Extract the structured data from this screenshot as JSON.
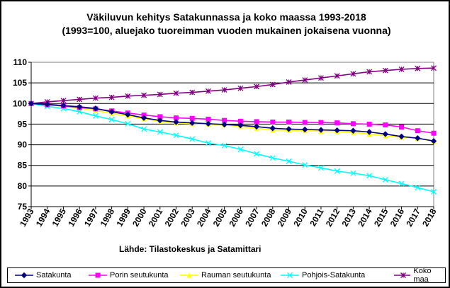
{
  "chart_data": {
    "type": "line",
    "title": "Väkiluvun kehitys Satakunnassa ja koko maassa 1993-2018",
    "subtitle": "(1993=100, aluejako tuoreimman vuoden mukainen jokaisena vuonna)",
    "source": "Lähde: Tilastokeskus ja Satamittari",
    "ylim": [
      75,
      110
    ],
    "yticks": [
      "75",
      "80",
      "85",
      "90",
      "95",
      "100",
      "105",
      "110"
    ],
    "categories": [
      "1993",
      "1994",
      "1995",
      "1996",
      "1997",
      "1998",
      "1999",
      "2000",
      "2001",
      "2002",
      "2003",
      "2004",
      "2005",
      "2006",
      "2007",
      "2008",
      "2009",
      "2010",
      "2011",
      "2012",
      "2013",
      "2014",
      "2015",
      "2016",
      "2017",
      "2018"
    ],
    "grid": true,
    "legend_position": "bottom",
    "series": [
      {
        "name": "Satakunta",
        "color": "#000080",
        "marker": "diamond",
        "values": [
          100,
          99.8,
          99.5,
          99.2,
          98.8,
          98.0,
          97.3,
          96.5,
          95.9,
          95.5,
          95.3,
          95.1,
          94.9,
          94.7,
          94.4,
          94.0,
          93.8,
          93.7,
          93.6,
          93.5,
          93.4,
          93.1,
          92.6,
          92.0,
          91.6,
          90.9
        ]
      },
      {
        "name": "Porin seutukunta",
        "color": "#FF00FF",
        "marker": "square",
        "values": [
          100,
          99.7,
          99.4,
          99.0,
          98.7,
          98.2,
          97.7,
          97.2,
          96.8,
          96.5,
          96.4,
          96.2,
          95.9,
          95.7,
          95.6,
          95.5,
          95.5,
          95.4,
          95.4,
          95.3,
          95.1,
          95.0,
          94.8,
          94.3,
          93.4,
          92.8
        ]
      },
      {
        "name": "Rauman seutukunta",
        "color": "#FFFF00",
        "marker": "triangle",
        "values": [
          100,
          99.7,
          99.3,
          98.9,
          98.3,
          97.6,
          97.0,
          96.3,
          95.7,
          95.3,
          95.1,
          95.0,
          94.8,
          94.4,
          94.0,
          93.6,
          93.5,
          93.4,
          93.3,
          93.2,
          93.0,
          92.6,
          92.2,
          91.8,
          91.5,
          90.9
        ]
      },
      {
        "name": "Pohjois-Satakunta",
        "color": "#00FFFF",
        "marker": "x",
        "values": [
          100,
          99.3,
          98.8,
          98.0,
          97.0,
          96.1,
          95.1,
          93.8,
          93.1,
          92.3,
          91.4,
          90.4,
          89.8,
          88.9,
          87.8,
          86.8,
          86.0,
          85.1,
          84.4,
          83.6,
          83.1,
          82.5,
          81.5,
          80.6,
          79.6,
          78.6
        ]
      },
      {
        "name": "Koko maa",
        "color": "#800080",
        "marker": "star",
        "values": [
          100,
          100.4,
          100.7,
          101.0,
          101.3,
          101.5,
          101.8,
          102.0,
          102.2,
          102.5,
          102.7,
          103.0,
          103.3,
          103.7,
          104.1,
          104.6,
          105.2,
          105.7,
          106.2,
          106.7,
          107.2,
          107.7,
          108.0,
          108.3,
          108.5,
          108.6
        ]
      }
    ]
  }
}
